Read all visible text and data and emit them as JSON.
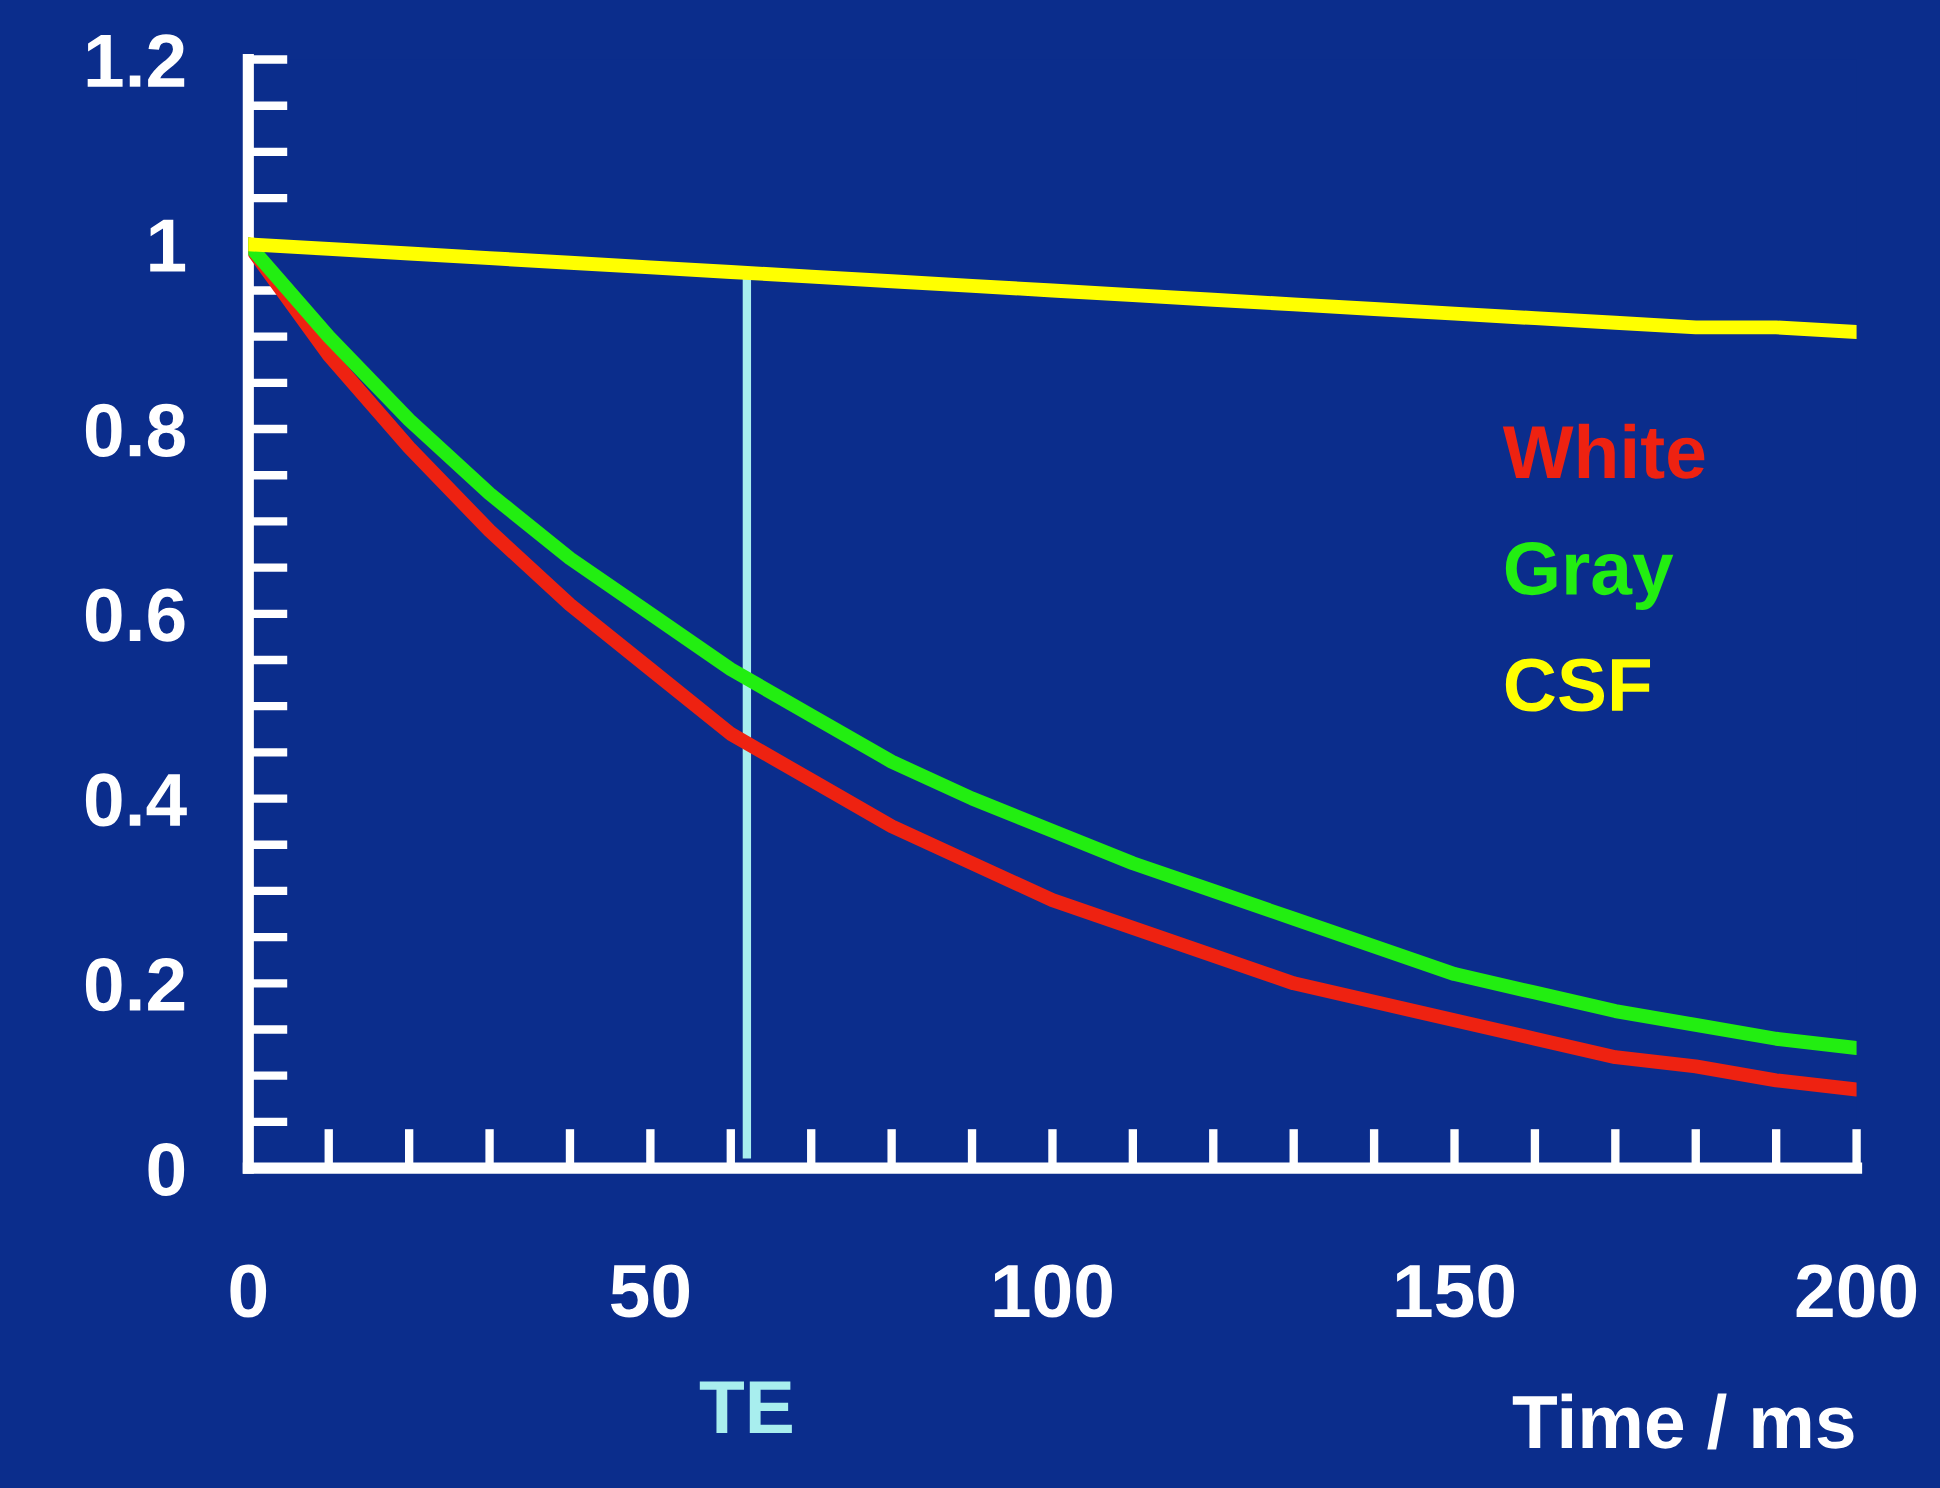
{
  "chart_data": {
    "type": "line",
    "xlabel": "Time / ms",
    "x": [
      0,
      10,
      20,
      30,
      40,
      50,
      60,
      70,
      80,
      90,
      100,
      110,
      120,
      130,
      140,
      150,
      160,
      170,
      180,
      190,
      200
    ],
    "series": [
      {
        "name": "White",
        "color": "#ee2211",
        "values": [
          1,
          0.88,
          0.78,
          0.69,
          0.61,
          0.54,
          0.47,
          0.42,
          0.37,
          0.33,
          0.29,
          0.26,
          0.23,
          0.2,
          0.18,
          0.16,
          0.14,
          0.12,
          0.11,
          0.095,
          0.085
        ]
      },
      {
        "name": "Gray",
        "color": "#22ee11",
        "values": [
          1,
          0.9,
          0.81,
          0.73,
          0.66,
          0.6,
          0.54,
          0.49,
          0.44,
          0.4,
          0.365,
          0.33,
          0.3,
          0.27,
          0.24,
          0.21,
          0.19,
          0.17,
          0.155,
          0.14,
          0.13
        ]
      },
      {
        "name": "CSF",
        "color": "#ffff00",
        "values": [
          1,
          0.995,
          0.99,
          0.985,
          0.98,
          0.975,
          0.97,
          0.965,
          0.96,
          0.955,
          0.95,
          0.945,
          0.94,
          0.935,
          0.93,
          0.925,
          0.92,
          0.915,
          0.91,
          0.91,
          0.905
        ]
      }
    ],
    "xlim": [
      0,
      200
    ],
    "xticks": [
      0,
      50,
      100,
      150,
      200
    ],
    "ylim": [
      0,
      1.2
    ],
    "yticks": [
      {
        "value": 0,
        "label": "0"
      },
      0.2,
      0.4,
      0.6,
      0.8,
      {
        "value": 1,
        "label": "1"
      },
      1.2
    ],
    "ref_lines": [
      {
        "axis": "x",
        "value": 62,
        "label": "TE",
        "color": "#a8eeee"
      }
    ],
    "legend": "right",
    "grid": false,
    "marker": "none",
    "line_style": "solid"
  }
}
